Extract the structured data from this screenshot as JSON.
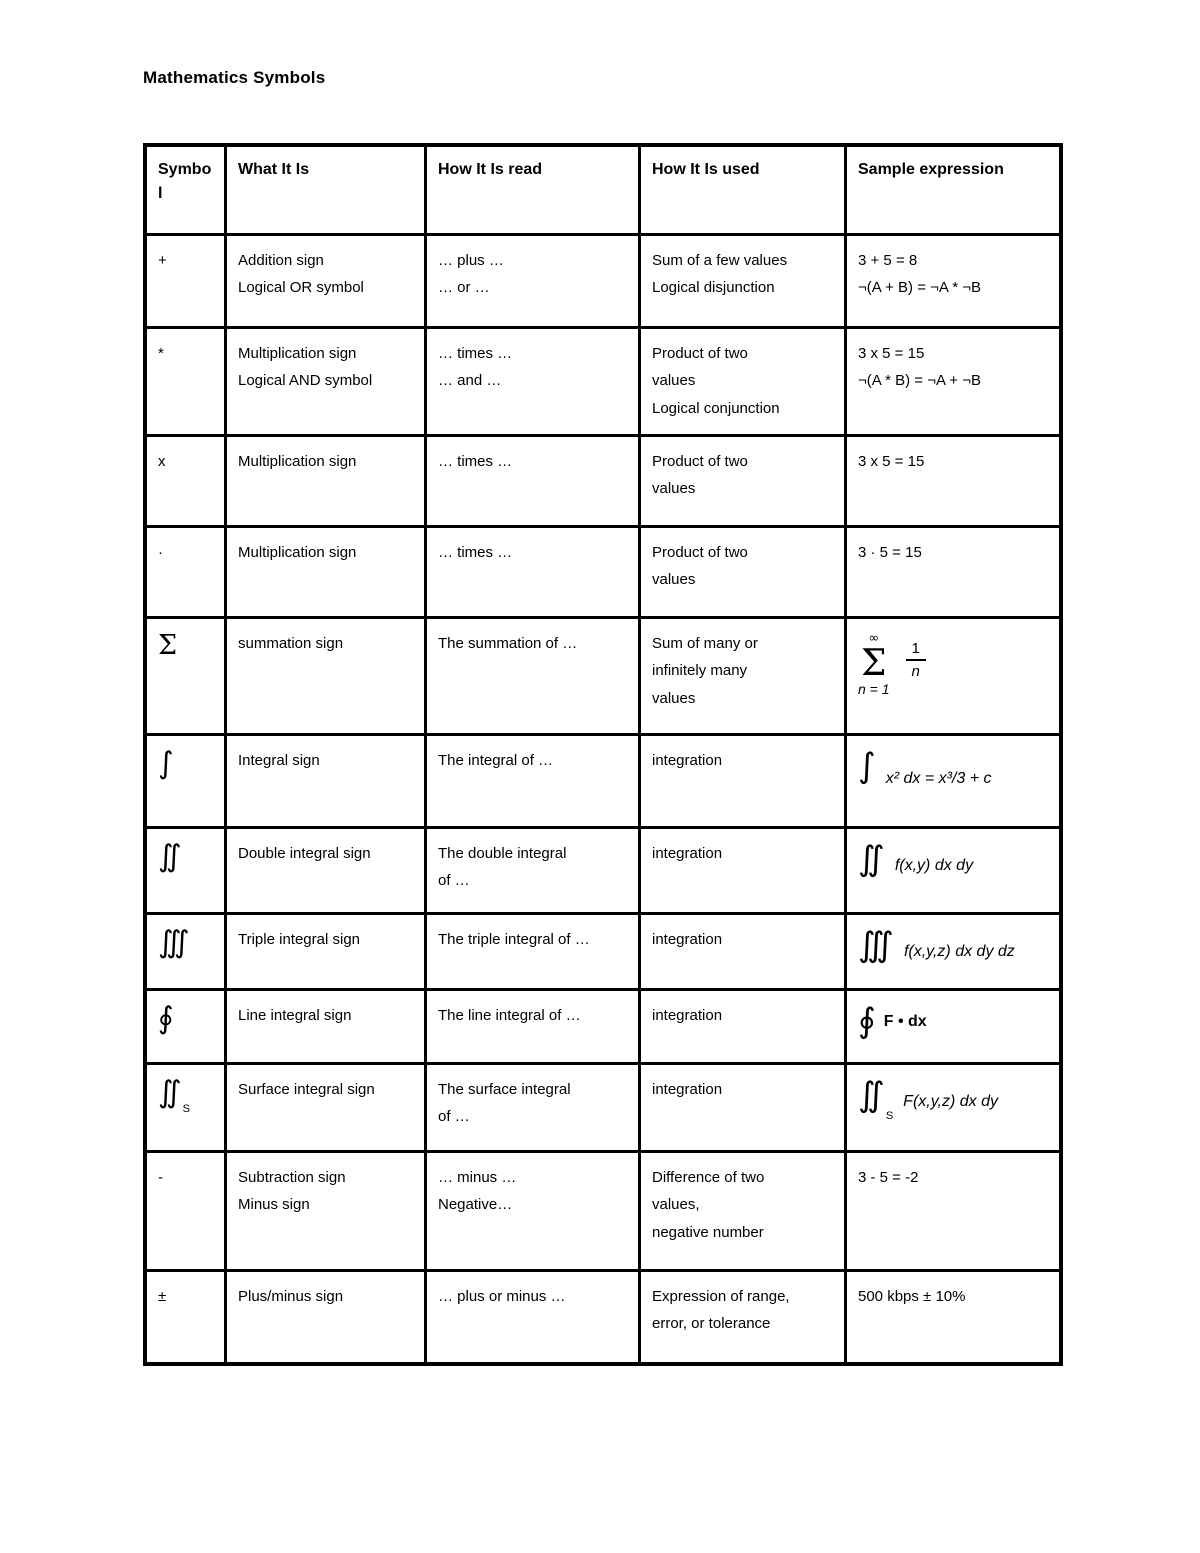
{
  "page": {
    "title": "Mathematics Symbols"
  },
  "table": {
    "headers": [
      {
        "label": "Symbo\nl"
      },
      {
        "label": "What It Is"
      },
      {
        "label": "How It Is read"
      },
      {
        "label": "How It Is used"
      },
      {
        "label": "Sample expression"
      }
    ],
    "rows": [
      {
        "symbol": {
          "text": "+",
          "style": "plain"
        },
        "what": "Addition sign\nLogical OR symbol",
        "read": "… plus …\n… or …",
        "used": "Sum of a few values\nLogical disjunction",
        "sample": {
          "type": "text",
          "text": "3 + 5 = 8\n¬(A + B) = ¬A * ¬B"
        }
      },
      {
        "symbol": {
          "text": "*",
          "style": "plain"
        },
        "what": "Multiplication sign\nLogical AND symbol",
        "read": "… times …\n… and …",
        "used": "Product of two\nvalues\nLogical conjunction",
        "sample": {
          "type": "text",
          "text": "3 x 5 = 15\n¬(A * B) = ¬A + ¬B"
        }
      },
      {
        "symbol": {
          "text": "x",
          "style": "plain"
        },
        "what": "Multiplication sign",
        "read": "… times …",
        "used": "Product of two\nvalues",
        "sample": {
          "type": "text",
          "text": "3 x 5 = 15"
        }
      },
      {
        "symbol": {
          "text": "·",
          "style": "plain"
        },
        "what": "Multiplication sign",
        "read": "… times …",
        "used": "Product of two\nvalues",
        "sample": {
          "type": "text",
          "text": "3 · 5 = 15"
        }
      },
      {
        "symbol": {
          "text": "Σ",
          "style": "big-serif"
        },
        "what": "summation sign",
        "read": "The summation of …",
        "used": "Sum of many or\ninfinitely many\nvalues",
        "sample": {
          "type": "sum",
          "top": "∞",
          "op": "Σ",
          "bottom": "n = 1",
          "num": "1",
          "den": "n"
        }
      },
      {
        "symbol": {
          "text": "∫",
          "style": "big"
        },
        "what": "Integral sign",
        "read": "The integral of …",
        "used": "integration",
        "sample": {
          "type": "bigop",
          "op": "∫",
          "expr": "x² dx = x³/3 + c"
        }
      },
      {
        "symbol": {
          "text": "∬",
          "style": "big"
        },
        "what": "Double integral sign",
        "read": "The double integral\nof …",
        "used": "integration",
        "sample": {
          "type": "bigop",
          "op": "∬",
          "expr": "f(x,y) dx dy",
          "pos": "mid"
        }
      },
      {
        "symbol": {
          "text": "∭",
          "style": "big"
        },
        "what": "Triple integral sign",
        "read": "The triple integral of …",
        "used": "integration",
        "sample": {
          "type": "bigop",
          "op": "∭",
          "expr": "f(x,y,z) dx dy dz",
          "pos": "mid"
        }
      },
      {
        "symbol": {
          "text": "∮",
          "style": "big"
        },
        "what": "Line integral sign",
        "read": "The line integral of …",
        "used": "integration",
        "sample": {
          "type": "bigop",
          "op": "∮",
          "expr": "F • dx",
          "bold": true
        }
      },
      {
        "symbol": {
          "text": "∬",
          "sub": "S",
          "style": "big"
        },
        "what": "Surface integral sign",
        "read": "The surface integral\nof …",
        "used": "integration",
        "sample": {
          "type": "bigop",
          "op": "∬",
          "sub": "S",
          "expr": "F(x,y,z) dx dy",
          "pos": "mid"
        }
      },
      {
        "symbol": {
          "text": "-",
          "style": "plain"
        },
        "what": "Subtraction sign\nMinus sign",
        "read": "… minus …\nNegative…",
        "used": "Difference of two\nvalues,\nnegative number",
        "sample": {
          "type": "text",
          "text": "3 - 5 = -2"
        }
      },
      {
        "symbol": {
          "text": "±",
          "style": "plain"
        },
        "what": "Plus/minus sign",
        "read": "… plus or minus …",
        "used": "Expression of range,\nerror, or tolerance",
        "sample": {
          "type": "text",
          "text": "500 kbps ± 10%"
        }
      }
    ]
  }
}
